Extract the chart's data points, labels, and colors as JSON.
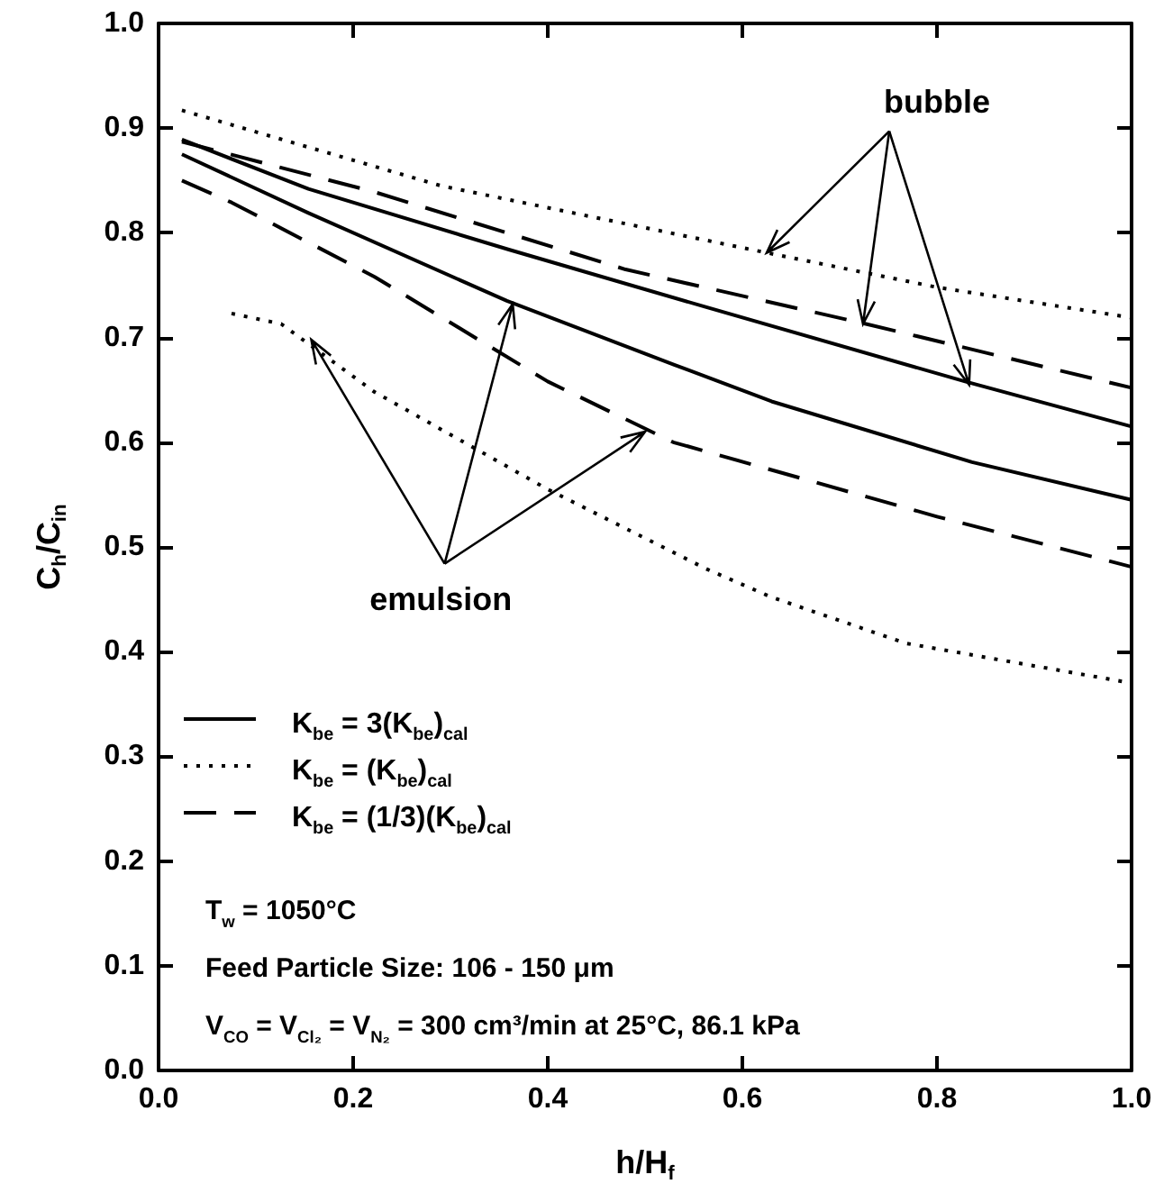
{
  "chart_data": {
    "type": "line",
    "xlabel": "h/H$_{f}$",
    "ylabel": "C$_{h}$/C$_{in}$",
    "xlim": [
      0,
      1
    ],
    "xticks": [
      {
        "value": 0,
        "label": "0.0"
      },
      0.2,
      0.4,
      0.6,
      0.8,
      {
        "value": 1,
        "label": "1.0"
      }
    ],
    "ylim": [
      0,
      1
    ],
    "yticks": [
      {
        "value": 0,
        "label": "0.0"
      },
      0.1,
      0.2,
      0.3,
      0.4,
      0.5,
      0.6,
      0.7,
      0.8,
      0.9,
      {
        "value": 1,
        "label": "1.0"
      }
    ],
    "grid": false,
    "legend": "bottom left",
    "marker": "none",
    "series": [
      {
        "name": "K$_{be}$ = 3(K$_{be}$)$_{cal}$",
        "color": "#000000",
        "line_style": "solid",
        "x": [
          0.024,
          0.154,
          0.36,
          0.563,
          0.829,
          1.0
        ],
        "values": [
          0.889,
          0.842,
          0.784,
          0.729,
          0.658,
          0.615
        ]
      },
      {
        "name": "K$_{be}$ = (K$_{be}$)$_{cal}$",
        "color": "#000000",
        "line_style": "dotted",
        "x": [
          0.024,
          0.29,
          0.625,
          0.8,
          1.0
        ],
        "values": [
          0.917,
          0.845,
          0.781,
          0.748,
          0.719
        ]
      },
      {
        "name": "K$_{be}$ = (1/3)(K$_{be}$)$_{cal}$",
        "color": "#000000",
        "line_style": "dashed",
        "x": [
          0.024,
          0.222,
          0.48,
          0.727,
          1.0
        ],
        "values": [
          0.887,
          0.839,
          0.765,
          0.713,
          0.652
        ]
      },
      {
        "color": "#000000",
        "line_style": "solid",
        "x": [
          0.024,
          0.154,
          0.358,
          0.53,
          0.63,
          0.836,
          1.0
        ],
        "values": [
          0.875,
          0.819,
          0.735,
          0.674,
          0.639,
          0.581,
          0.545
        ]
      },
      {
        "color": "#000000",
        "line_style": "dotted",
        "x": [
          0.075,
          0.126,
          0.222,
          0.4,
          0.563,
          0.63,
          0.768,
          1.0
        ],
        "values": [
          0.723,
          0.713,
          0.648,
          0.555,
          0.479,
          0.452,
          0.408,
          0.37
        ]
      },
      {
        "color": "#000000",
        "line_style": "dashed",
        "x": [
          0.024,
          0.075,
          0.222,
          0.4,
          0.529,
          0.8,
          1.0
        ],
        "values": [
          0.85,
          0.829,
          0.758,
          0.658,
          0.6,
          0.529,
          0.481
        ]
      }
    ],
    "annotations": [
      {
        "text": "bubble",
        "x": 0.724,
        "y": 0.713
      },
      {
        "text": "emulsion",
        "x": 0.364,
        "y": 0.732
      },
      "T$_{w}$ = 1050°C",
      "Feed Particle Size: 106 - 150 μm",
      "V$_{CO}$ = V$_{Cl₂}$ = V$_{N₂}$ = 300 cm³/min at 25°C, 86.1 kPa"
    ]
  }
}
